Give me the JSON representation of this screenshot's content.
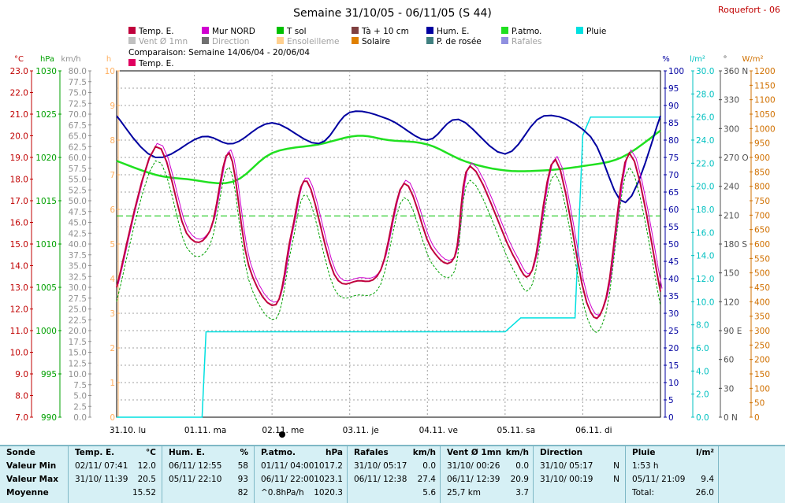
{
  "title": "Semaine 31/10/05 - 06/11/05 (S 44)",
  "station": "Roquefort - 06",
  "legend": [
    {
      "label": "Temp. E.",
      "color": "#c0003c"
    },
    {
      "label": "Mur NORD",
      "color": "#d000d0"
    },
    {
      "label": "T sol",
      "color": "#00c000"
    },
    {
      "label": "Tà + 10 cm",
      "color": "#804040"
    },
    {
      "label": "Hum. E.",
      "color": "#0000a0"
    },
    {
      "label": "P.atmo.",
      "color": "#20e020"
    },
    {
      "label": "Pluie",
      "color": "#00e0e0"
    },
    {
      "label": "Vent Ø 1mn",
      "color": "#c0c0c0"
    },
    {
      "label": "Direction",
      "color": "#707070"
    },
    {
      "label": "Ensoleilleme",
      "color": "#ffd090"
    },
    {
      "label": "Solaire",
      "color": "#e08000"
    },
    {
      "label": "P. de rosée",
      "color": "#408080"
    },
    {
      "label": "Rafales",
      "color": "#9090e0"
    }
  ],
  "comparison": {
    "label": "Comparaison: Semaine 14/06/04 - 20/06/04",
    "series": "Temp. E.",
    "color": "#e00060"
  },
  "axes": {
    "temp": {
      "unit": "°C",
      "ticks": [
        "23.0",
        "22.0",
        "21.0",
        "20.0",
        "19.0",
        "18.0",
        "17.0",
        "16.0",
        "15.0",
        "14.0",
        "13.0",
        "12.0",
        "11.0",
        "10.0",
        "9.0",
        "8.0",
        "7.0"
      ]
    },
    "pressure": {
      "unit": "hPa",
      "ticks": [
        "1030",
        "1025",
        "1020",
        "1015",
        "1010",
        "1005",
        "1000",
        "995",
        "990"
      ]
    },
    "wind": {
      "unit": "km/h",
      "ticks": [
        "80.0",
        "77.5",
        "75.0",
        "72.5",
        "70.0",
        "67.5",
        "65.0",
        "62.5",
        "60.0",
        "57.5",
        "55.0",
        "52.5",
        "50.0",
        "47.5",
        "45.0",
        "42.5",
        "40.0",
        "37.5",
        "35.0",
        "32.5",
        "30.0",
        "27.5",
        "25.0",
        "22.5",
        "20.0",
        "17.5",
        "15.0",
        "12.5",
        "10.0",
        "7.5",
        "5.0",
        "2.5",
        "0.0"
      ]
    },
    "sun": {
      "unit": "h",
      "ticks": [
        "10",
        "9",
        "8",
        "7",
        "6",
        "5",
        "4",
        "3",
        "2",
        "1",
        "0"
      ]
    },
    "humidity": {
      "unit": "%",
      "ticks": [
        "100",
        "95",
        "90",
        "85",
        "80",
        "75",
        "70",
        "65",
        "60",
        "55",
        "50",
        "45",
        "40",
        "35",
        "30",
        "25",
        "20",
        "15",
        "10",
        "5",
        "0"
      ]
    },
    "rain": {
      "unit": "l/m²",
      "ticks": [
        "30.0",
        "28.0",
        "26.0",
        "24.0",
        "22.0",
        "20.0",
        "18.0",
        "16.0",
        "14.0",
        "12.0",
        "10.0",
        "8.0",
        "6.0",
        "4.0",
        "2.0",
        "0.0"
      ]
    },
    "direction": {
      "unit": "°",
      "ticks": [
        "360 N",
        "330",
        "300",
        "270 O",
        "240",
        "210",
        "180 S",
        "150",
        "120",
        "90 E",
        "60",
        "30",
        "0 N"
      ]
    },
    "solar": {
      "unit": "W/m²",
      "ticks": [
        "1200",
        "1150",
        "1100",
        "1050",
        "1000",
        "950",
        "900",
        "850",
        "800",
        "750",
        "700",
        "650",
        "600",
        "550",
        "500",
        "450",
        "400",
        "350",
        "300",
        "250",
        "200",
        "150",
        "100",
        "50",
        "0"
      ]
    },
    "days": [
      "31.10. lu",
      "01.11. ma",
      "02.11. me",
      "03.11. je",
      "04.11. ve",
      "05.11. sa",
      "06.11. di"
    ]
  },
  "chart_data": {
    "type": "line",
    "title": "Semaine 31/10/05 - 06/11/05 (S 44)",
    "x": [
      "31.10. lu",
      "01.11. ma",
      "02.11. me",
      "03.11. je",
      "04.11. ve",
      "05.11. sa",
      "06.11. di"
    ],
    "temp_range": [
      7,
      23
    ],
    "series": [
      {
        "name": "Temp. E.",
        "unit": "°C",
        "values": [
          [
            0,
            13.0
          ],
          [
            0.5,
            19.5
          ],
          [
            0.9,
            15.5
          ],
          [
            1.2,
            15.6
          ],
          [
            1.45,
            19.2
          ],
          [
            1.7,
            14.0
          ],
          [
            2.05,
            12.2
          ],
          [
            2.25,
            15.5
          ],
          [
            2.45,
            17.9
          ],
          [
            2.8,
            13.6
          ],
          [
            3.1,
            13.3
          ],
          [
            3.4,
            13.8
          ],
          [
            3.7,
            17.8
          ],
          [
            4.05,
            14.8
          ],
          [
            4.35,
            14.4
          ],
          [
            4.55,
            18.6
          ],
          [
            5.1,
            14.5
          ],
          [
            5.35,
            13.8
          ],
          [
            5.65,
            18.9
          ],
          [
            6.05,
            12.3
          ],
          [
            6.3,
            12.5
          ],
          [
            6.6,
            19.2
          ],
          [
            7.0,
            12.8
          ]
        ]
      },
      {
        "name": "Hum. E.",
        "unit": "%",
        "values": [
          [
            0,
            87
          ],
          [
            0.5,
            75
          ],
          [
            1.1,
            81
          ],
          [
            1.5,
            79
          ],
          [
            2.0,
            85
          ],
          [
            2.6,
            79
          ],
          [
            3.0,
            88
          ],
          [
            3.5,
            86
          ],
          [
            4.0,
            80
          ],
          [
            4.4,
            86
          ],
          [
            5.0,
            76
          ],
          [
            5.5,
            87
          ],
          [
            6.1,
            81
          ],
          [
            6.55,
            62
          ],
          [
            7.0,
            87
          ]
        ]
      },
      {
        "name": "P.atmo.",
        "unit": "hPa",
        "values": [
          [
            0,
            1019.6
          ],
          [
            0.5,
            1018.0
          ],
          [
            0.9,
            1017.5
          ],
          [
            1.5,
            1017.2
          ],
          [
            2.0,
            1020.5
          ],
          [
            2.6,
            1021.5
          ],
          [
            3.1,
            1022.5
          ],
          [
            3.5,
            1022.0
          ],
          [
            4.0,
            1021.5
          ],
          [
            4.5,
            1019.5
          ],
          [
            5.0,
            1018.5
          ],
          [
            5.5,
            1018.5
          ],
          [
            6.0,
            1019.0
          ],
          [
            6.5,
            1020.0
          ],
          [
            7.0,
            1023.1
          ]
        ]
      },
      {
        "name": "Pluie",
        "unit": "l/m²",
        "values": [
          [
            0,
            0
          ],
          [
            1.1,
            0
          ],
          [
            1.15,
            7.4
          ],
          [
            5.0,
            7.4
          ],
          [
            5.2,
            8.6
          ],
          [
            5.9,
            8.6
          ],
          [
            6.0,
            24.4
          ],
          [
            6.1,
            26.0
          ],
          [
            7.0,
            26.0
          ]
        ]
      }
    ]
  },
  "stats": {
    "sonde": {
      "header": "Sonde",
      "rows": [
        "Valeur Min",
        "Valeur Max",
        "Moyenne"
      ]
    },
    "temp": {
      "header": "Temp. E.",
      "unit": "°C",
      "rows": [
        [
          "02/11/  07:41",
          "12.0"
        ],
        [
          "31/10/  11:39",
          "20.5"
        ],
        [
          "",
          "15.52"
        ]
      ]
    },
    "hum": {
      "header": "Hum. E.",
      "unit": "%",
      "rows": [
        [
          "06/11/  12:55",
          "58"
        ],
        [
          "05/11/  22:10",
          "93"
        ],
        [
          "",
          "82"
        ]
      ]
    },
    "patmo": {
      "header": "P.atmo.",
      "unit": "hPa",
      "rows": [
        [
          "01/11/  04:00",
          "1017.2"
        ],
        [
          "06/11/  22:00",
          "1023.1"
        ],
        [
          "^0.8hPa/h",
          "1020.3"
        ]
      ]
    },
    "rafales": {
      "header": "Rafales",
      "unit": "km/h",
      "rows": [
        [
          "31/10/  05:17",
          "0.0"
        ],
        [
          "06/11/  12:38",
          "27.4"
        ],
        [
          "",
          "5.6"
        ]
      ]
    },
    "vent": {
      "header": "Vent Ø 1mn",
      "unit": "km/h",
      "rows": [
        [
          "31/10/  00:26",
          "0.0"
        ],
        [
          "06/11/  12:39",
          "20.9"
        ],
        [
          "25,7 km",
          "3.7"
        ]
      ]
    },
    "direction": {
      "header": "Direction",
      "rows": [
        [
          "31/10/  05:17",
          "N"
        ],
        [
          "31/10/  00:19",
          "N"
        ],
        [
          "",
          ""
        ]
      ]
    },
    "pluie": {
      "header": "Pluie",
      "unit": "l/m²",
      "rows": [
        [
          "1:53 h",
          ""
        ],
        [
          "05/11/  21:09",
          "9.4"
        ],
        [
          "Total:",
          "26.0"
        ]
      ]
    }
  }
}
